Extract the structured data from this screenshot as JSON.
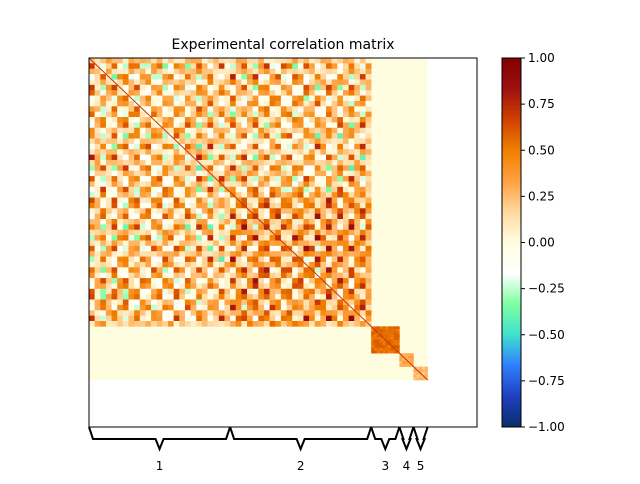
{
  "chart_data": {
    "type": "heatmap",
    "title": "Experimental correlation matrix",
    "xlabel": "",
    "ylabel": "",
    "grid": false,
    "legend": "none",
    "matrix_size": 275,
    "blocks": [
      {
        "label": "1",
        "start": 0,
        "end": 100,
        "mean_offdiag": 0.35
      },
      {
        "label": "2",
        "start": 100,
        "end": 200,
        "mean_offdiag": 0.45
      },
      {
        "label": "3",
        "start": 200,
        "end": 220,
        "mean_offdiag": 0.55
      },
      {
        "label": "4",
        "start": 220,
        "end": 230,
        "mean_offdiag": 0.3
      },
      {
        "label": "5",
        "start": 230,
        "end": 240,
        "mean_offdiag": 0.25
      }
    ],
    "cross_block_value": 0.0,
    "diagonal_value": 1.0,
    "colorbar": {
      "vmin": -1.0,
      "vmax": 1.0,
      "ticks": [
        "1.00",
        "0.75",
        "0.50",
        "0.25",
        "0.00",
        "−0.25",
        "−0.50",
        "−0.75",
        "−1.00"
      ],
      "tick_values": [
        1.0,
        0.75,
        0.5,
        0.25,
        0.0,
        -0.25,
        -0.5,
        -0.75,
        -1.0
      ],
      "colormap": [
        "#08306b",
        "#1f3fbf",
        "#2f80ff",
        "#40e0d0",
        "#7fffa0",
        "#ffffff",
        "#fffde0",
        "#ffd9a0",
        "#ffa040",
        "#f08000",
        "#d04000",
        "#a01010",
        "#800000"
      ]
    },
    "colors": {
      "zero": "#fffde0",
      "blank": "#ffffff",
      "axes": "#000000"
    }
  }
}
